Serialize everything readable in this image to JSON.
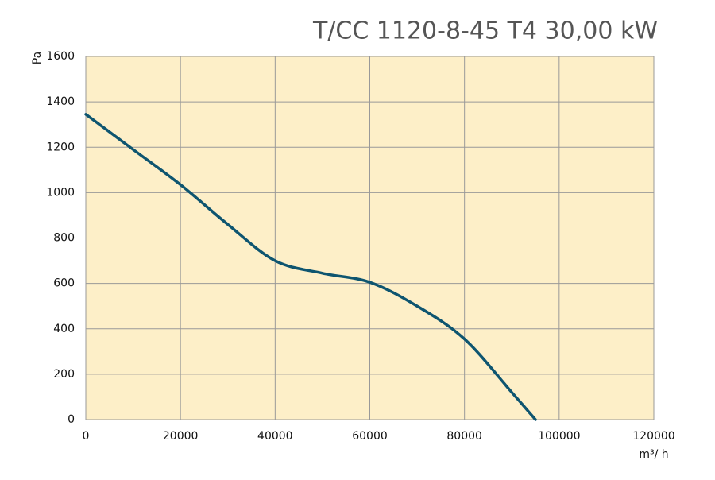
{
  "chart_data": {
    "type": "line",
    "title": "T/CC 1120-8-45 T4  30,00 kW",
    "y_label": "Pa",
    "x_label": "m³/ h",
    "x": [
      0,
      10000,
      20000,
      30000,
      40000,
      50000,
      60000,
      70000,
      80000,
      90000,
      95000
    ],
    "values": [
      1345,
      1190,
      1035,
      860,
      700,
      645,
      605,
      500,
      355,
      120,
      0
    ],
    "color": "#0e5570",
    "xlim": [
      0,
      120000
    ],
    "xticks": [
      0,
      20000,
      40000,
      60000,
      80000,
      100000,
      120000
    ],
    "ylim": [
      0,
      1600
    ],
    "yticks": [
      0,
      200,
      400,
      600,
      800,
      1000,
      1200,
      1400,
      1600
    ],
    "grid": true
  }
}
